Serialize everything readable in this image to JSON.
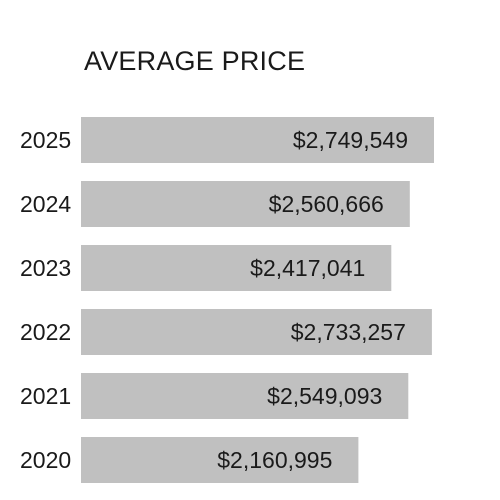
{
  "chart_data": {
    "type": "bar",
    "orientation": "horizontal",
    "title": "AVERAGE PRICE",
    "xlabel": "",
    "ylabel": "",
    "categories": [
      "2025",
      "2024",
      "2023",
      "2022",
      "2021",
      "2020"
    ],
    "values": [
      2749549,
      2560666,
      2417041,
      2733257,
      2549093,
      2160995
    ],
    "value_labels": [
      "$2,749,549",
      "$2,560,666",
      "$2,417,041",
      "$2,733,257",
      "$2,549,093",
      "$2,160,995"
    ],
    "xlim": [
      0,
      2749549
    ],
    "grid": false,
    "legend": "none",
    "bar_color": "#c0c0c0",
    "text_color": "#1a1a1a"
  }
}
